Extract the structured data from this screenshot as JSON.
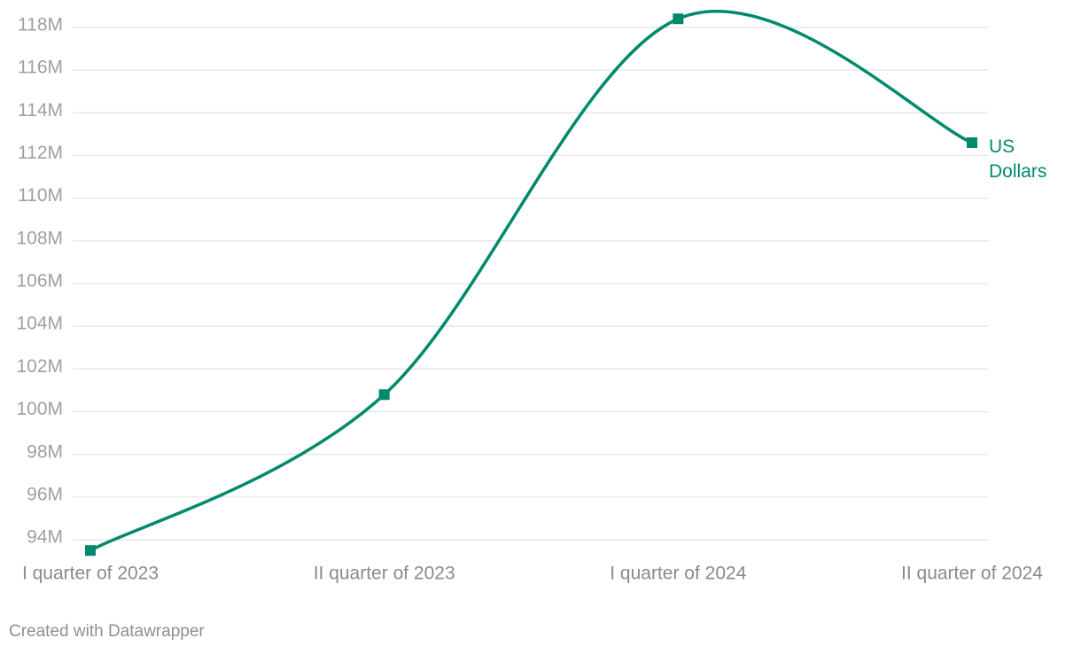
{
  "chart_data": {
    "type": "line",
    "categories": [
      "I quarter of 2023",
      "II quarter of 2023",
      "I quarter of 2024",
      "II quarter of 2024"
    ],
    "series": [
      {
        "name": "US Dollars",
        "color": "#00896d",
        "values": [
          93500000,
          100800000,
          118400000,
          112600000
        ]
      }
    ],
    "ylim": [
      93300000,
      118700000
    ],
    "yticks": [
      {
        "value": 94000000,
        "label": "94M"
      },
      {
        "value": 96000000,
        "label": "96M"
      },
      {
        "value": 98000000,
        "label": "98M"
      },
      {
        "value": 100000000,
        "label": "100M"
      },
      {
        "value": 102000000,
        "label": "102M"
      },
      {
        "value": 104000000,
        "label": "104M"
      },
      {
        "value": 106000000,
        "label": "106M"
      },
      {
        "value": 108000000,
        "label": "108M"
      },
      {
        "value": 110000000,
        "label": "110M"
      },
      {
        "value": 112000000,
        "label": "112M"
      },
      {
        "value": 114000000,
        "label": "114M"
      },
      {
        "value": 116000000,
        "label": "116M"
      },
      {
        "value": 118000000,
        "label": "118M"
      }
    ],
    "grid": true,
    "credit": "Created with Datawrapper"
  }
}
